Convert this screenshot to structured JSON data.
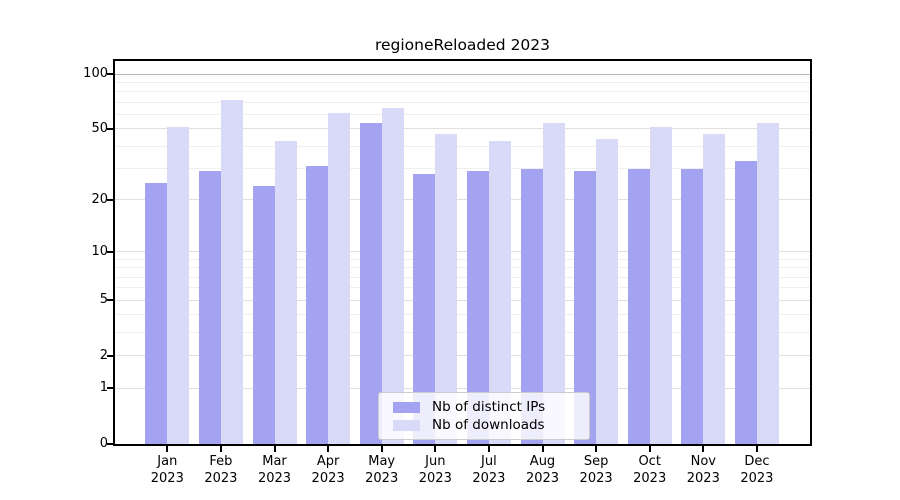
{
  "chart_data": {
    "type": "bar",
    "title": "regioneReloaded 2023",
    "categories": [
      "Jan",
      "Feb",
      "Mar",
      "Apr",
      "May",
      "Jun",
      "Jul",
      "Aug",
      "Sep",
      "Oct",
      "Nov",
      "Dec"
    ],
    "x_year_label": "2023",
    "series": [
      {
        "name": "Nb of distinct IPs",
        "color": "#a3a3f1",
        "values": [
          25,
          29,
          24,
          31,
          54,
          28,
          29,
          30,
          29,
          30,
          30,
          33
        ]
      },
      {
        "name": "Nb of downloads",
        "color": "#d9d9f8",
        "values": [
          51,
          72,
          43,
          61,
          65,
          47,
          43,
          54,
          44,
          51,
          47,
          54
        ]
      }
    ],
    "yscale": "log1p",
    "ylim": [
      0,
      117
    ],
    "yticks": [
      0,
      1,
      2,
      5,
      10,
      20,
      50,
      100
    ],
    "minor_gridlines": [
      3,
      4,
      6,
      7,
      8,
      9,
      30,
      40,
      60,
      70,
      80,
      90
    ],
    "grid": "on",
    "legend_position": "lower-center",
    "colors": {
      "gridline_top": "#b5b5b5",
      "gridline_major": "#e0e0e0",
      "gridline_minor": "#efefef",
      "axis": "#000000",
      "text": "#000000"
    }
  }
}
